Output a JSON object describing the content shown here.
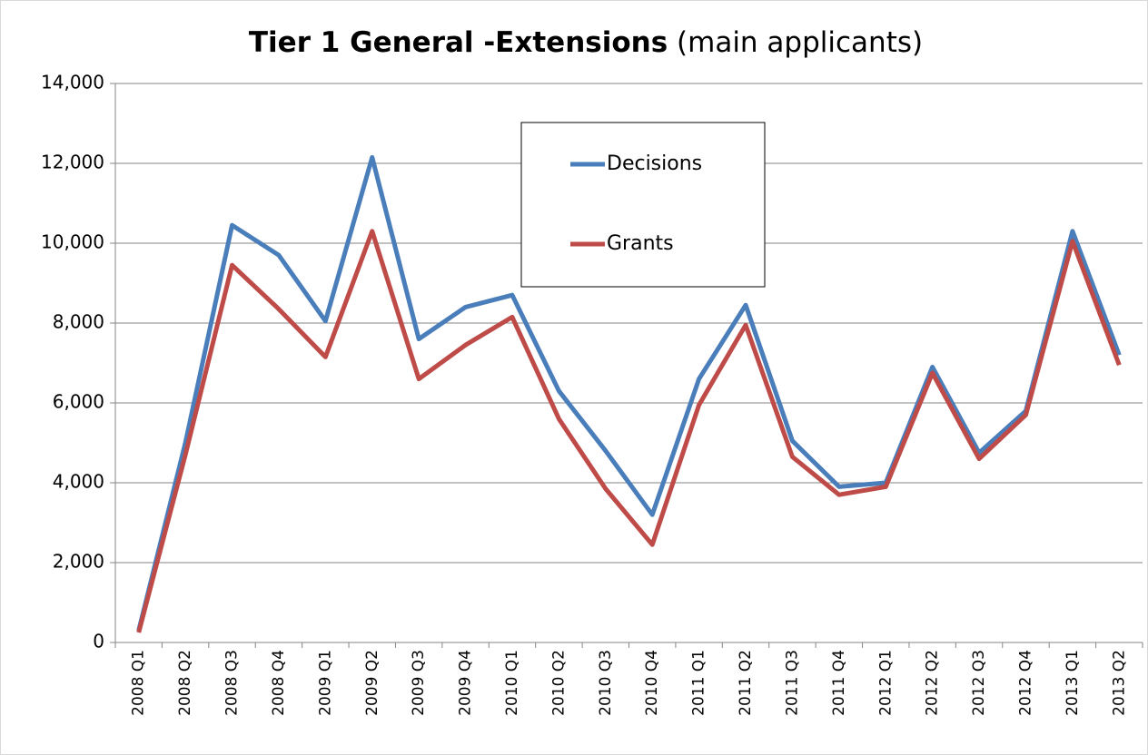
{
  "chart_data": {
    "type": "line",
    "title": "Tier 1 General -Extensions",
    "subtitle": "(main applicants)",
    "categories": [
      "2008 Q1",
      "2008 Q2",
      "2008 Q3",
      "2008 Q4",
      "2009 Q1",
      "2009 Q2",
      "2009 Q3",
      "2009 Q4",
      "2010 Q1",
      "2010 Q2",
      "2010 Q3",
      "2010 Q4",
      "2011 Q1",
      "2011 Q2",
      "2011 Q3",
      "2011 Q4",
      "2012 Q1",
      "2012 Q2",
      "2012 Q3",
      "2012 Q4",
      "2013 Q1",
      "2013 Q2"
    ],
    "series": [
      {
        "name": "Decisions",
        "color": "#4a7ebb",
        "values": [
          300,
          5000,
          10450,
          9700,
          8050,
          12150,
          7600,
          8400,
          8700,
          6300,
          4800,
          3200,
          6600,
          8450,
          5050,
          3900,
          4000,
          6900,
          4750,
          5800,
          10300,
          7200
        ]
      },
      {
        "name": "Grants",
        "color": "#be4b48",
        "values": [
          250,
          4700,
          9450,
          8350,
          7150,
          10300,
          6600,
          7450,
          8150,
          5600,
          3850,
          2450,
          5950,
          7950,
          4650,
          3700,
          3900,
          6750,
          4600,
          5700,
          10050,
          6950
        ]
      }
    ],
    "ylim": [
      0,
      14000
    ],
    "yticks": [
      0,
      {
        "value": 2000,
        "label": "2,000"
      },
      {
        "value": 4000,
        "label": "4,000"
      },
      {
        "value": 6000,
        "label": "6,000"
      },
      {
        "value": 8000,
        "label": "8,000"
      },
      {
        "value": 10000,
        "label": "10,000"
      },
      {
        "value": 12000,
        "label": "12,000"
      },
      {
        "value": 14000,
        "label": "14,000"
      }
    ],
    "grid": true,
    "legend": "top-center"
  }
}
